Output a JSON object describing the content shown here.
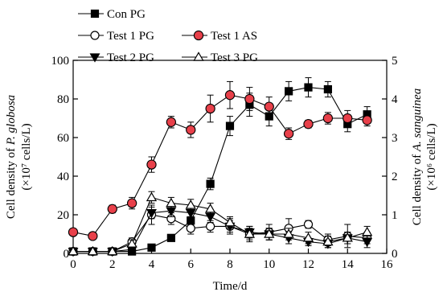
{
  "chart_data": {
    "type": "line",
    "xlabel": "Time/d",
    "ylabel_left_line1_prefix": "Cell density of ",
    "ylabel_left_line1_species": "P. globosa",
    "ylabel_left_line2": "(×10⁷ cells/L)",
    "ylabel_right_line1_prefix": "Cell density of ",
    "ylabel_right_line1_species": "A. sanguinea",
    "ylabel_right_line2": "(×10⁶ cells/L)",
    "xlim": [
      0,
      16
    ],
    "ylim_left": [
      0,
      100
    ],
    "ylim_right": [
      0,
      5
    ],
    "x_ticks": [
      "0",
      "2",
      "4",
      "6",
      "8",
      "10",
      "12",
      "14",
      "16"
    ],
    "y_ticks_left": [
      "0",
      "20",
      "40",
      "60",
      "80",
      "100"
    ],
    "y_ticks_right": [
      "0",
      "1",
      "2",
      "3",
      "4",
      "5"
    ],
    "series": [
      {
        "name": "Con PG",
        "axis": "left",
        "marker": "square-filled",
        "x": [
          0,
          1,
          2,
          3,
          4,
          5,
          6,
          7,
          8,
          9,
          10,
          11,
          12,
          13,
          14,
          15
        ],
        "y": [
          1,
          1,
          1,
          1,
          3,
          8,
          17,
          36,
          66,
          77,
          71,
          84,
          86,
          85,
          67,
          72
        ],
        "err": [
          1,
          1,
          1,
          1,
          1,
          1,
          2,
          3,
          5,
          6,
          5,
          5,
          5,
          4,
          4,
          4
        ]
      },
      {
        "name": "Test 1 PG",
        "axis": "left",
        "marker": "circle-open",
        "x": [
          0,
          1,
          2,
          3,
          4,
          5,
          6,
          7,
          8,
          9,
          10,
          11,
          12,
          13,
          14,
          15
        ],
        "y": [
          1,
          1,
          1,
          6,
          20,
          18,
          13,
          14,
          14,
          10,
          11,
          13,
          15,
          7,
          9,
          8
        ],
        "err": [
          1,
          1,
          1,
          2,
          5,
          3,
          3,
          3,
          4,
          4,
          4,
          5,
          2,
          3,
          6,
          3
        ]
      },
      {
        "name": "Test 1 AS",
        "axis": "right",
        "marker": "circle-red",
        "x": [
          0,
          1,
          2,
          3,
          4,
          5,
          6,
          7,
          8,
          9,
          10,
          11,
          12,
          13,
          14,
          15
        ],
        "y": [
          0.55,
          0.45,
          1.15,
          1.3,
          2.3,
          3.4,
          3.2,
          3.75,
          4.1,
          4.0,
          3.8,
          3.1,
          3.35,
          3.5,
          3.5,
          3.45
        ],
        "err": [
          0.05,
          0.05,
          0.1,
          0.15,
          0.2,
          0.15,
          0.2,
          0.35,
          0.35,
          0.3,
          0.25,
          0.15,
          0.1,
          0.15,
          0.2,
          0.15
        ]
      },
      {
        "name": "Test 2 PG",
        "axis": "left",
        "marker": "triangle-down-filled",
        "x": [
          0,
          1,
          2,
          3,
          4,
          5,
          6,
          7,
          8,
          9,
          10,
          11,
          12,
          13,
          14,
          15
        ],
        "y": [
          1,
          1,
          1,
          2,
          21,
          22,
          21,
          19,
          14,
          11,
          10,
          8,
          6,
          5,
          8,
          6
        ],
        "err": [
          1,
          1,
          1,
          1,
          3,
          3,
          3,
          3,
          3,
          3,
          3,
          3,
          2,
          2,
          3,
          3
        ]
      },
      {
        "name": "Test 3 PG",
        "axis": "left",
        "marker": "triangle-up-open",
        "x": [
          0,
          1,
          2,
          3,
          4,
          5,
          6,
          7,
          8,
          9,
          10,
          11,
          12,
          13,
          14,
          15
        ],
        "y": [
          1,
          1,
          1,
          5,
          29,
          26,
          25,
          23,
          16,
          10,
          10,
          10,
          8,
          6,
          8,
          11
        ],
        "err": [
          1,
          1,
          1,
          2,
          3,
          3,
          3,
          3,
          3,
          3,
          3,
          3,
          3,
          3,
          3,
          3
        ]
      }
    ]
  }
}
